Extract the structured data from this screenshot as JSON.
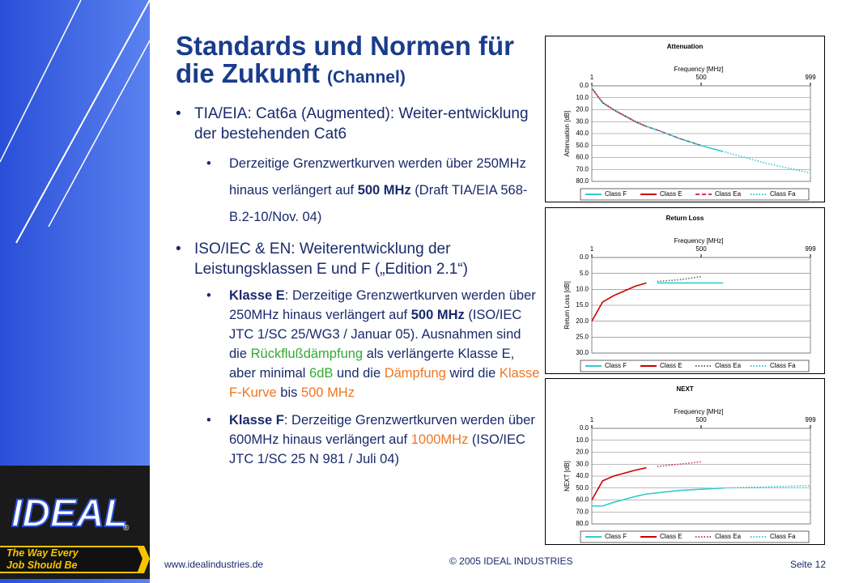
{
  "slide": {
    "title": "Standards und Normen für die Zukunft",
    "title_suffix": "(Channel)",
    "bullets": [
      {
        "segments": [
          {
            "text": "TIA/EIA: Cat6a (Augmented): Weiter-entwicklung der bestehenden Cat6"
          }
        ],
        "sub": [
          {
            "segments": [
              {
                "text": "Derzeitige Grenzwertkurven werden über 250MHz hinaus verlängert auf "
              },
              {
                "text": "500 MHz",
                "bold": true
              },
              {
                "text": " (Draft TIA/EIA 568-B.2-10/Nov. 04)"
              }
            ]
          }
        ]
      },
      {
        "segments": [
          {
            "text": "ISO/IEC & EN: Weiterentwicklung der Leistungsklassen E und F („Edition 2.1“)"
          }
        ],
        "sub": [
          {
            "segments": [
              {
                "text": "Klasse E",
                "bold": true
              },
              {
                "text": ":  Derzeitige Grenzwertkurven werden über 250MHz hinaus verlängert auf "
              },
              {
                "text": "500 MHz",
                "bold": true
              },
              {
                "text": " (ISO/IEC JTC 1/SC 25/WG3 / Januar 05). Ausnahmen sind die "
              },
              {
                "text": "Rückflußdämpfung",
                "color": "#33aa33"
              },
              {
                "text": " als verlängerte Klasse E, aber minimal "
              },
              {
                "text": "6dB",
                "color": "#33aa33"
              },
              {
                "text": " und die "
              },
              {
                "text": "Dämpfung",
                "color": "#ee7722"
              },
              {
                "text": " wird die "
              },
              {
                "text": "Klasse F-Kurve",
                "color": "#ee7722"
              },
              {
                "text": " bis "
              },
              {
                "text": "500 MHz",
                "color": "#ee7722"
              }
            ]
          },
          {
            "segments": [
              {
                "text": "Klasse F",
                "bold": true
              },
              {
                "text": ":  Derzeitige Grenzwertkurven werden über 600MHz hinaus verlängert auf "
              },
              {
                "text": "1000MHz",
                "color": "#ee7722"
              },
              {
                "text": " (ISO/IEC JTC 1/SC 25 N 981 / Juli 04)"
              }
            ]
          }
        ]
      }
    ],
    "logo": "IDEAL",
    "logo_mark": "®",
    "slogan": "The Way Every Job Should Be",
    "footer_url": "www.idealindustries.de",
    "footer_copyright": "© 2005 IDEAL INDUSTRIES",
    "footer_page": "Seite 12"
  },
  "chart_data": [
    {
      "type": "line",
      "title": "Attenuation",
      "x_label": "Frequency [MHz]",
      "y_label": "Attenuation [dB]",
      "x": [
        1,
        50,
        100,
        200,
        250,
        300,
        400,
        500,
        600,
        700,
        800,
        900,
        999
      ],
      "xlim": [
        1,
        999
      ],
      "xticks": [
        1,
        500,
        999
      ],
      "ylim": [
        0,
        80
      ],
      "y_reversed": true,
      "grid": true,
      "yticks": [
        {
          "value": 0,
          "label": "0.0"
        },
        {
          "value": 10,
          "label": "10.0"
        },
        {
          "value": 20,
          "label": "20.0"
        },
        {
          "value": 30,
          "label": "30.0"
        },
        {
          "value": 40,
          "label": "40.0"
        },
        {
          "value": 50,
          "label": "50.0"
        },
        {
          "value": 60,
          "label": "60.0"
        },
        {
          "value": 70,
          "label": "70.0"
        },
        {
          "value": 80,
          "label": "80.0"
        }
      ],
      "series": [
        {
          "name": "Class F",
          "color": "#33cccc",
          "dash": "solid",
          "values": [
            2,
            14,
            20,
            30,
            34,
            37,
            44,
            50,
            55,
            null,
            null,
            null,
            null
          ]
        },
        {
          "name": "Class E",
          "color": "#cc0000",
          "dash": "solid",
          "values": [
            2,
            14,
            20,
            30,
            34,
            null,
            null,
            null,
            null,
            null,
            null,
            null,
            null
          ]
        },
        {
          "name": "Class Ea",
          "color": "#cc3366",
          "dash": "dashed",
          "values": [
            2,
            14,
            20,
            30,
            34,
            37,
            44,
            50,
            null,
            null,
            null,
            null,
            null
          ]
        },
        {
          "name": "Class Fa",
          "color": "#33cccc",
          "dash": "dotted",
          "values": [
            2,
            14,
            20,
            30,
            34,
            37,
            44,
            50,
            55,
            60,
            65,
            69,
            73
          ]
        }
      ]
    },
    {
      "type": "line",
      "title": "Return Loss",
      "x_label": "Frequency [MHz]",
      "y_label": "Return Loss [dB]",
      "x": [
        1,
        50,
        100,
        200,
        250,
        300,
        400,
        500,
        600
      ],
      "xlim": [
        1,
        999
      ],
      "xticks": [
        1,
        500,
        999
      ],
      "ylim": [
        0,
        30
      ],
      "y_reversed": true,
      "grid": true,
      "yticks": [
        {
          "value": 0,
          "label": "0.0"
        },
        {
          "value": 5,
          "label": "5.0"
        },
        {
          "value": 10,
          "label": "10.0"
        },
        {
          "value": 15,
          "label": "15.0"
        },
        {
          "value": 20,
          "label": "20.0"
        },
        {
          "value": 25,
          "label": "25.0"
        },
        {
          "value": 30,
          "label": "30.0"
        }
      ],
      "series": [
        {
          "name": "Class F",
          "color": "#33cccc",
          "dash": "solid",
          "values": [
            null,
            null,
            null,
            null,
            null,
            8,
            8,
            8,
            8
          ]
        },
        {
          "name": "Class E",
          "color": "#cc0000",
          "dash": "solid",
          "values": [
            20,
            14,
            12,
            9,
            8,
            null,
            null,
            null,
            null
          ]
        },
        {
          "name": "Class Ea",
          "color": "#666666",
          "dash": "dotted",
          "values": [
            null,
            null,
            null,
            null,
            null,
            7.5,
            7,
            6,
            null
          ]
        },
        {
          "name": "Class Fa",
          "color": "#33cccc",
          "dash": "dotted",
          "values": [
            null,
            null,
            null,
            null,
            null,
            null,
            null,
            null,
            null
          ]
        }
      ]
    },
    {
      "type": "line",
      "title": "NEXT",
      "x_label": "Frequency [MHz]",
      "y_label": "NEXT [dB]",
      "x": [
        1,
        50,
        100,
        200,
        250,
        300,
        400,
        500,
        600,
        700,
        800,
        900,
        999
      ],
      "xlim": [
        1,
        999
      ],
      "xticks": [
        1,
        500,
        999
      ],
      "ylim": [
        0,
        80
      ],
      "y_reversed": true,
      "grid": true,
      "yticks": [
        {
          "value": 0,
          "label": "0.0"
        },
        {
          "value": 10,
          "label": "10.0"
        },
        {
          "value": 20,
          "label": "20.0"
        },
        {
          "value": 30,
          "label": "30.0"
        },
        {
          "value": 40,
          "label": "40.0"
        },
        {
          "value": 50,
          "label": "50.0"
        },
        {
          "value": 60,
          "label": "60.0"
        },
        {
          "value": 70,
          "label": "70.0"
        },
        {
          "value": 80,
          "label": "80.0"
        }
      ],
      "series": [
        {
          "name": "Class F",
          "color": "#33cccc",
          "dash": "solid",
          "values": [
            65,
            65,
            62,
            57,
            55,
            54,
            52,
            51,
            50,
            null,
            null,
            null,
            null
          ]
        },
        {
          "name": "Class E",
          "color": "#cc0000",
          "dash": "solid",
          "values": [
            60,
            44,
            40,
            35,
            33,
            null,
            null,
            null,
            null,
            null,
            null,
            null,
            null
          ]
        },
        {
          "name": "Class Ea",
          "color": "#cc3366",
          "dash": "dotted",
          "values": [
            null,
            null,
            null,
            null,
            null,
            32,
            30,
            28,
            null,
            null,
            null,
            null,
            null
          ]
        },
        {
          "name": "Class Fa",
          "color": "#33cccc",
          "dash": "dotted",
          "values": [
            null,
            null,
            null,
            null,
            null,
            null,
            null,
            null,
            50,
            49.5,
            49,
            48.5,
            48
          ]
        }
      ]
    }
  ]
}
